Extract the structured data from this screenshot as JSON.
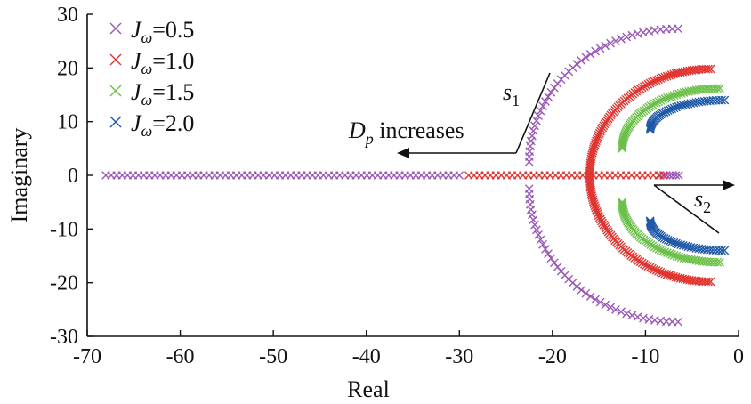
{
  "chart_data": {
    "type": "scatter",
    "xlabel": "Real",
    "ylabel": "Imaginary",
    "xlim": [
      -70,
      0
    ],
    "ylim": [
      -30,
      30
    ],
    "xticks": [
      -70,
      -60,
      -50,
      -40,
      -30,
      -20,
      -10,
      0
    ],
    "yticks": [
      30,
      20,
      10,
      0,
      -10,
      -20,
      -30
    ],
    "grid": false,
    "legend_position": "top-left",
    "marker": "x",
    "series": [
      {
        "name": "J_ω=0.5",
        "legend": {
          "symbol": "J",
          "subscript": "ω",
          "value": "=0.5"
        },
        "color": "#9b59b6",
        "real_axis_x": [
          -68.0,
          -30.0
        ],
        "lower_real_x": [
          -8.4,
          -6.4
        ],
        "upper_branch": {
          "start": [
            -22.5,
            2.5
          ],
          "end": [
            -6.5,
            27.3
          ]
        },
        "lower_branch": {
          "start": [
            -22.5,
            -2.5
          ],
          "end": [
            -6.5,
            -27.3
          ]
        }
      },
      {
        "name": "J_ω=1.0",
        "legend": {
          "symbol": "J",
          "subscript": "ω",
          "value": "=1.0"
        },
        "color": "#e03530",
        "real_axis_x": [
          -29.0,
          -8.0
        ],
        "upper_branch": {
          "start": [
            -16.0,
            0.0
          ],
          "end": [
            -3.0,
            19.8
          ]
        },
        "lower_branch": {
          "start": [
            -16.0,
            0.0
          ],
          "end": [
            -3.0,
            -19.8
          ]
        }
      },
      {
        "name": "J_ω=1.5",
        "legend": {
          "symbol": "J",
          "subscript": "ω",
          "value": "=1.5"
        },
        "color": "#6cc04a",
        "upper_branch": {
          "start": [
            -12.5,
            5.0
          ],
          "end": [
            -2.0,
            16.2
          ]
        },
        "lower_branch": {
          "start": [
            -12.5,
            -5.0
          ],
          "end": [
            -2.0,
            -16.2
          ]
        }
      },
      {
        "name": "J_ω=2.0",
        "legend": {
          "symbol": "J",
          "subscript": "ω",
          "value": "=2.0"
        },
        "color": "#1f5aa8",
        "upper_branch": {
          "start": [
            -9.5,
            8.5
          ],
          "end": [
            -1.5,
            14.0
          ]
        },
        "lower_branch": {
          "start": [
            -9.5,
            -8.5
          ],
          "end": [
            -1.5,
            -14.0
          ]
        }
      }
    ],
    "annotations": {
      "s1": {
        "symbol": "s",
        "subscript": "1"
      },
      "s2": {
        "symbol": "s",
        "subscript": "2"
      },
      "dp_text": {
        "symbol": "D",
        "subscript": "p",
        "text": " increases"
      }
    }
  }
}
